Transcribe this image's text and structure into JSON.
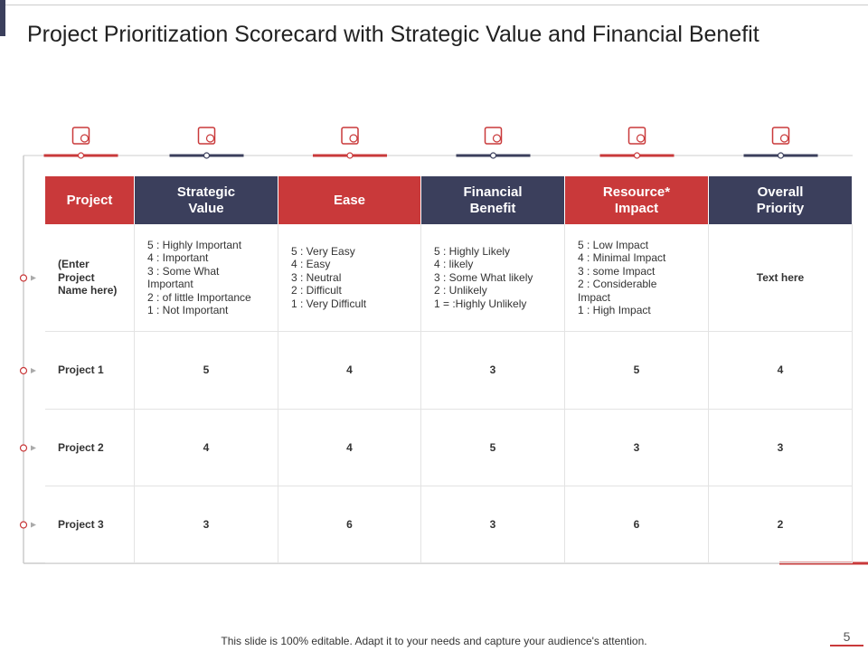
{
  "title": "Project Prioritization Scorecard with Strategic Value and Financial Benefit",
  "table": {
    "headers": [
      "Project",
      "Strategic Value",
      "Ease",
      "Financial Benefit",
      "Resource* Impact",
      "Overall Priority"
    ],
    "rows": [
      [
        [
          "(Enter",
          "Project",
          "Name here)"
        ],
        [
          "5 : Highly Important",
          "4 : Important",
          "3 : Some What",
          "Important",
          "2 : of little Importance",
          "1 : Not Important"
        ],
        [
          "5 : Very Easy",
          "4 : Easy",
          "3 : Neutral",
          "2 : Difficult",
          "1 : Very Difficult"
        ],
        [
          "5 : Highly Likely",
          "4 : likely",
          "3 : Some What likely",
          "2 : Unlikely",
          "1 = :Highly Unlikely"
        ],
        [
          "5 : Low Impact",
          "4 : Minimal Impact",
          "3 : some Impact",
          "2 : Considerable",
          "Impact",
          "1 : High Impact"
        ],
        [
          "Text here"
        ]
      ],
      [
        [
          "Project 1"
        ],
        [
          5
        ],
        [
          4
        ],
        [
          3
        ],
        [
          5
        ],
        [
          4
        ]
      ],
      [
        [
          "Project 2"
        ],
        [
          4
        ],
        [
          4
        ],
        [
          5
        ],
        [
          3
        ],
        [
          3
        ]
      ],
      [
        [
          "Project 3"
        ],
        [
          3
        ],
        [
          6
        ],
        [
          3
        ],
        [
          6
        ],
        [
          2
        ]
      ]
    ]
  },
  "footer": "This slide is 100% editable. Adapt it to your needs and capture your audience's attention.",
  "page_number": "5"
}
